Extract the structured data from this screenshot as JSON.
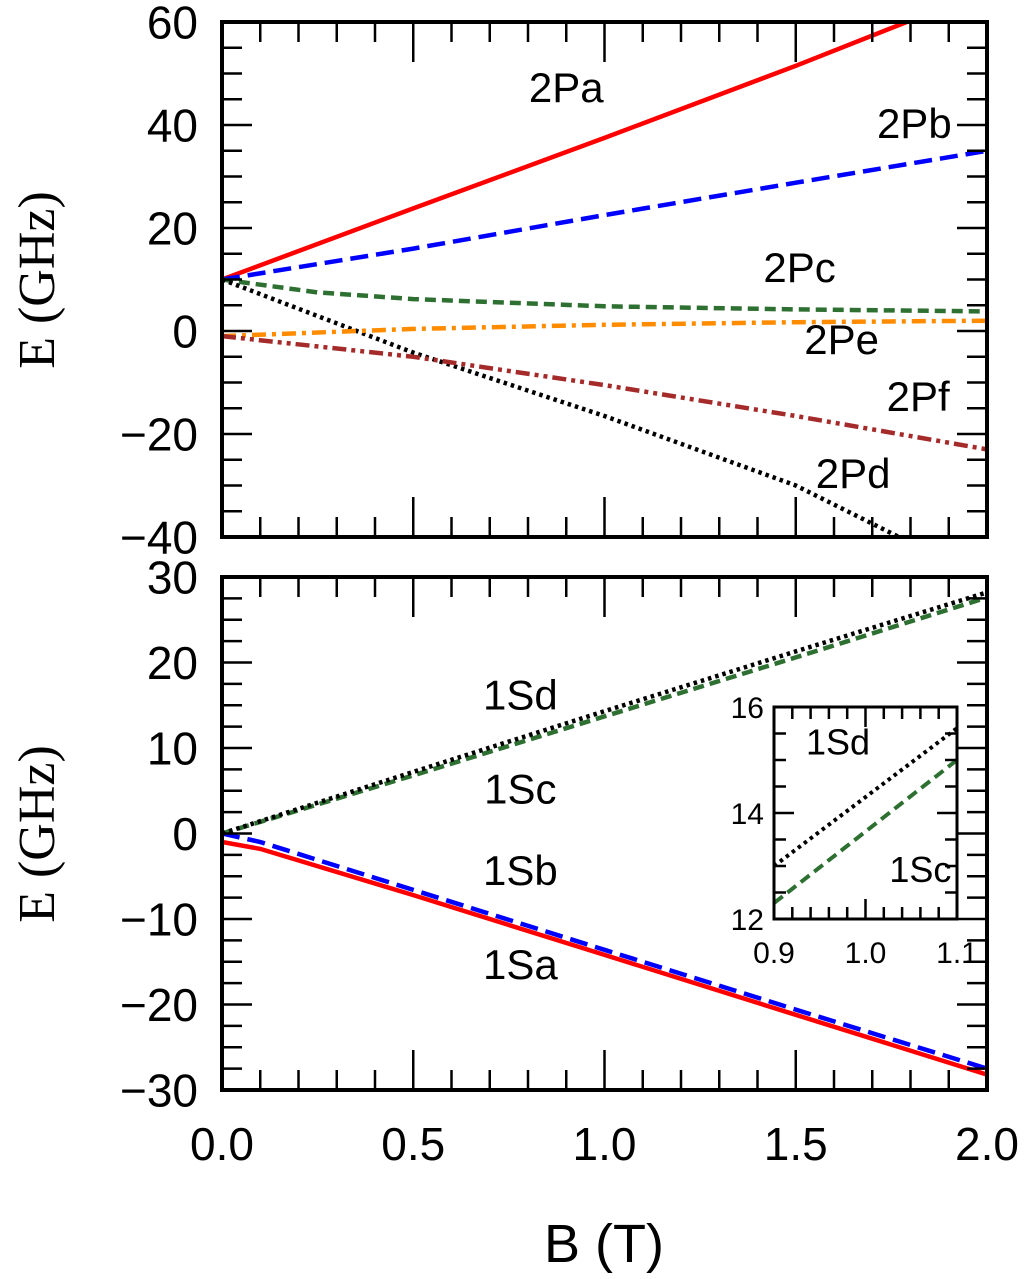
{
  "chart_data": [
    {
      "type": "line",
      "panel": "top",
      "xlabel": "B (T)",
      "ylabel": "E (GHz)",
      "xlim": [
        0,
        2.0
      ],
      "ylim": [
        -40,
        60
      ],
      "yticks": [
        60,
        40,
        20,
        0,
        -20,
        -40
      ],
      "ytick_labels": [
        "60",
        "40",
        "20",
        "0",
        "−20",
        "−40"
      ],
      "grid": false,
      "series": [
        {
          "name": "2Pa",
          "color": "#ff0000",
          "style": "solid",
          "x": [
            0,
            0.5,
            1.0,
            1.5,
            1.79
          ],
          "y": [
            10,
            23.8,
            37.5,
            51.5,
            60
          ]
        },
        {
          "name": "2Pb",
          "color": "#0000ff",
          "style": "dashed",
          "x": [
            0,
            0.5,
            1.0,
            1.5,
            2.0
          ],
          "y": [
            10,
            16,
            22.5,
            28.8,
            35
          ]
        },
        {
          "name": "2Pc",
          "color": "#2e7031",
          "style": "dashed-short",
          "x": [
            0,
            0.25,
            0.5,
            1.0,
            1.5,
            2.0
          ],
          "y": [
            10,
            7.5,
            6.2,
            4.8,
            4.2,
            3.8
          ]
        },
        {
          "name": "2Pd",
          "color": "#000000",
          "style": "dotted",
          "x": [
            0,
            0.5,
            1.0,
            1.5,
            1.77
          ],
          "y": [
            10,
            -4.2,
            -16.5,
            -30,
            -40
          ]
        },
        {
          "name": "2Pe",
          "color": "#ff8c00",
          "style": "dash-dot",
          "x": [
            0,
            0.5,
            1.0,
            1.5,
            2.0
          ],
          "y": [
            -1,
            0.4,
            1.2,
            1.7,
            2.0
          ]
        },
        {
          "name": "2Pf",
          "color": "#a52a2a",
          "style": "dash-dot-dot",
          "x": [
            0,
            0.5,
            1.0,
            1.5,
            2.0
          ],
          "y": [
            -1,
            -5,
            -10.5,
            -16.5,
            -23
          ]
        }
      ],
      "annotations": [
        {
          "text": "2Pa",
          "x": 0.9,
          "y": 44.5
        },
        {
          "text": "2Pb",
          "x": 1.81,
          "y": 37.5
        },
        {
          "text": "2Pc",
          "x": 1.51,
          "y": 9.5
        },
        {
          "text": "2Pe",
          "x": 1.62,
          "y": -4.5
        },
        {
          "text": "2Pf",
          "x": 1.82,
          "y": -15.5
        },
        {
          "text": "2Pd",
          "x": 1.65,
          "y": -30.5
        }
      ]
    },
    {
      "type": "line",
      "panel": "bottom",
      "xlabel": "B (T)",
      "ylabel": "E (GHz)",
      "xlim": [
        0,
        2.0
      ],
      "ylim": [
        -30,
        30
      ],
      "xticks": [
        0.0,
        0.5,
        1.0,
        1.5,
        2.0
      ],
      "xtick_labels": [
        "0.0",
        "0.5",
        "1.0",
        "1.5",
        "2.0"
      ],
      "yticks": [
        30,
        20,
        10,
        0,
        -10,
        -20,
        -30
      ],
      "ytick_labels": [
        "30",
        "20",
        "10",
        "0",
        "−10",
        "−20",
        "−30"
      ],
      "grid": false,
      "series": [
        {
          "name": "1Sa",
          "color": "#ff0000",
          "style": "solid",
          "x": [
            0,
            0.1,
            0.5,
            1.0,
            1.5,
            2.0
          ],
          "y": [
            -1,
            -1.8,
            -7.2,
            -14.2,
            -21.2,
            -28.2
          ]
        },
        {
          "name": "1Sb",
          "color": "#0000ff",
          "style": "dashed",
          "x": [
            0,
            0.1,
            0.5,
            1.0,
            1.5,
            2.0
          ],
          "y": [
            0,
            -1.0,
            -6.6,
            -13.6,
            -20.6,
            -27.5
          ]
        },
        {
          "name": "1Sc",
          "color": "#2e7031",
          "style": "dashed-short",
          "x": [
            0,
            0.5,
            1.0,
            1.5,
            2.0
          ],
          "y": [
            0,
            6.8,
            13.7,
            20.6,
            27.6
          ]
        },
        {
          "name": "1Sd",
          "color": "#000000",
          "style": "dotted",
          "x": [
            0,
            0.5,
            1.0,
            1.5,
            2.0
          ],
          "y": [
            0,
            7.2,
            14.3,
            21.3,
            28.2
          ]
        }
      ],
      "annotations": [
        {
          "text": "1Sd",
          "x": 0.78,
          "y": 14.5
        },
        {
          "text": "1Sc",
          "x": 0.78,
          "y": 3.5
        },
        {
          "text": "1Sb",
          "x": 0.78,
          "y": -6
        },
        {
          "text": "1Sa",
          "x": 0.78,
          "y": -17
        }
      ]
    },
    {
      "type": "line",
      "panel": "inset",
      "xlim": [
        0.9,
        1.1
      ],
      "ylim": [
        12,
        16
      ],
      "xticks": [
        0.9,
        1.0,
        1.1
      ],
      "xtick_labels": [
        "0.9",
        "1.0",
        "1.1"
      ],
      "yticks": [
        12,
        14,
        16
      ],
      "ytick_labels": [
        "12",
        "14",
        "16"
      ],
      "series": [
        {
          "name": "1Sd",
          "color": "#000000",
          "style": "dotted",
          "x": [
            0.9,
            1.1
          ],
          "y": [
            13.0,
            15.6
          ]
        },
        {
          "name": "1Sc",
          "color": "#2e7031",
          "style": "dashed-short",
          "x": [
            0.9,
            1.1
          ],
          "y": [
            12.3,
            15.0
          ]
        }
      ],
      "annotations": [
        {
          "text": "1Sd",
          "x": 0.97,
          "y": 15.1
        },
        {
          "text": "1Sc",
          "x": 1.06,
          "y": 12.7
        }
      ]
    }
  ],
  "labels": {
    "top_ylabel": "E (GHz)",
    "bottom_ylabel": "E (GHz)",
    "xlabel": "B (T)"
  }
}
